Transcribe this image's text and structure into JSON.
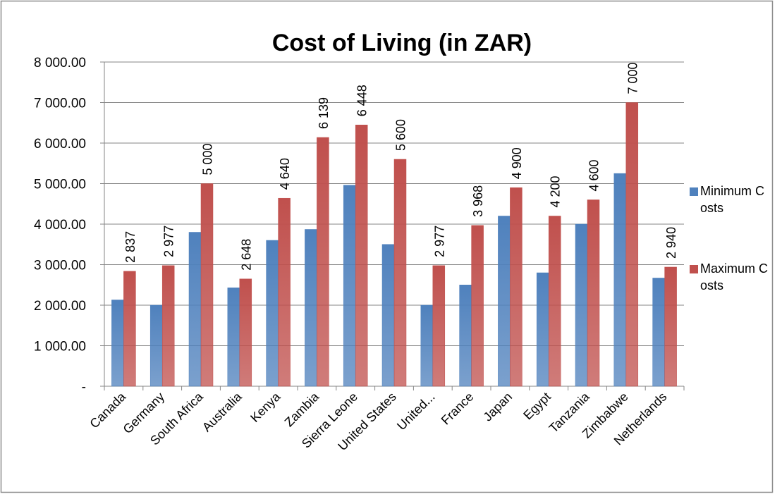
{
  "chart_data": {
    "type": "bar",
    "title": "Cost of Living (in ZAR)",
    "categories": [
      "Canada",
      "Germany",
      "South Africa",
      "Australia",
      "Kenya",
      "Zambia",
      "Sierra Leone",
      "United States",
      "United...",
      "France",
      "Japan",
      "Egypt",
      "Tanzania",
      "Zimbabwe",
      "Netherlands"
    ],
    "series": [
      {
        "name": "Minimum Costs",
        "color": "#4f81bd",
        "values": [
          2130,
          2000,
          3800,
          2430,
          3600,
          3870,
          4960,
          3500,
          2000,
          2500,
          4200,
          2800,
          4000,
          5250,
          2670
        ]
      },
      {
        "name": "Maximum Costs",
        "color": "#c0504d",
        "values": [
          2837,
          2977,
          5000,
          2648,
          4640,
          6139,
          6448,
          5600,
          2977,
          3968,
          4900,
          4200,
          4600,
          7000,
          2940
        ],
        "value_labels": [
          "2 837",
          "2 977",
          "5 000",
          "2 648",
          "4 640",
          "6 139",
          "6 448",
          "5 600",
          "2 977",
          "3 968",
          "4 900",
          "4 200",
          "4 600",
          "7 000",
          "2 940"
        ]
      }
    ],
    "ylim": [
      0,
      8000
    ],
    "yticks": [
      {
        "value": 0,
        "label": "-"
      },
      {
        "value": 1000,
        "label": "1 000.00"
      },
      {
        "value": 2000,
        "label": "2 000.00"
      },
      {
        "value": 3000,
        "label": "3 000.00"
      },
      {
        "value": 4000,
        "label": "4 000.00"
      },
      {
        "value": 5000,
        "label": "5 000.00"
      },
      {
        "value": 6000,
        "label": "6 000.00"
      },
      {
        "value": 7000,
        "label": "7 000.00"
      },
      {
        "value": 8000,
        "label": "8 000.00"
      }
    ],
    "grid": true,
    "legend": "right"
  }
}
